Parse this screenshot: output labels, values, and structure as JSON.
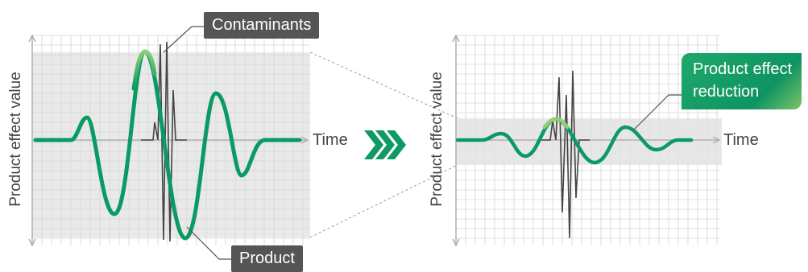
{
  "left_panel": {
    "y_axis_label": "Product effect value",
    "x_axis_label": "Time",
    "callout_contaminants": "Contaminants",
    "callout_product": "Product"
  },
  "right_panel": {
    "y_axis_label": "Product effect value",
    "x_axis_label": "Time",
    "callout_reduction_line1": "Product effect",
    "callout_reduction_line2": "reduction"
  },
  "arrow_icon": "triple-chevron-right-icon",
  "colors": {
    "product_wave": "#0a9a64",
    "product_wave_highlight": "#7cc46a",
    "contaminant_wave": "#444444",
    "band": "#e6e6e6",
    "grid": "#d8d8d8",
    "axis": "#b0b0b0",
    "callout_dark": "#555555",
    "callout_green": "#0e9462"
  }
}
